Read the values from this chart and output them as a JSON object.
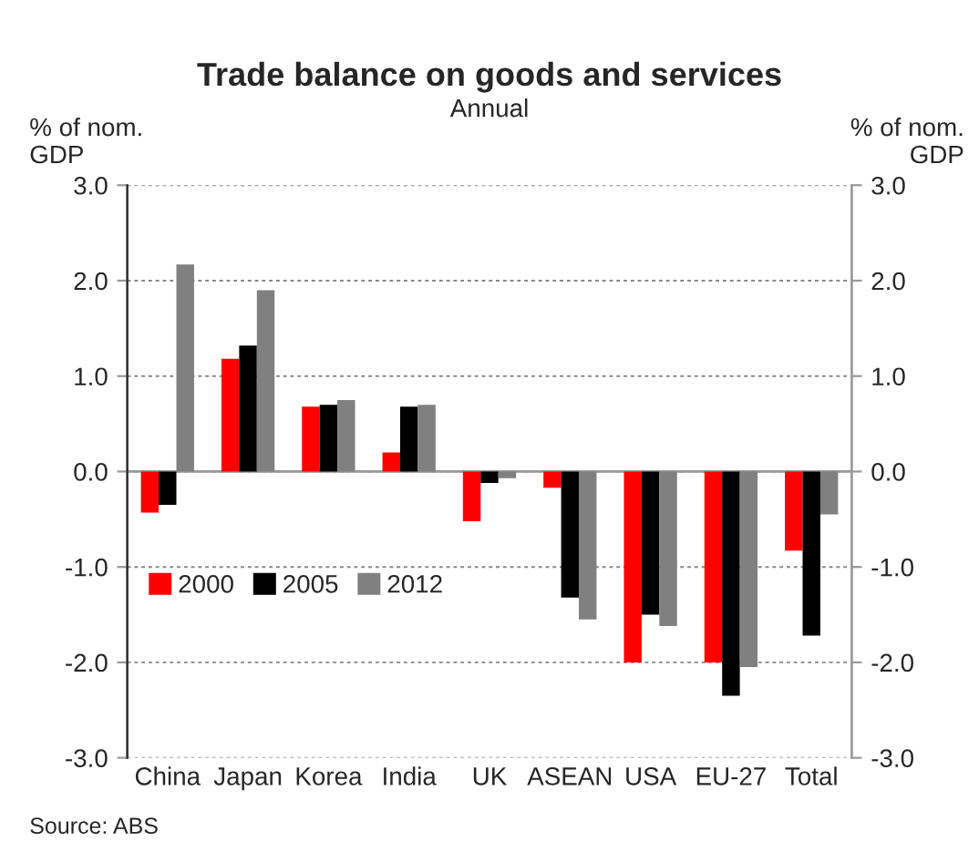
{
  "chart_data": {
    "type": "bar",
    "title": "Trade balance on goods and services",
    "subtitle": "Annual",
    "ylabel": "% of nom.\nGDP",
    "y2label": "% of nom.\nGDP",
    "categories": [
      "China",
      "Japan",
      "Korea",
      "India",
      "UK",
      "ASEAN",
      "USA",
      "EU-27",
      "Total"
    ],
    "series": [
      {
        "name": "2000",
        "color": "#ff0000",
        "values": [
          -0.43,
          1.18,
          0.68,
          0.2,
          -0.52,
          -0.17,
          -2.0,
          -2.0,
          -0.83
        ]
      },
      {
        "name": "2005",
        "color": "#000000",
        "values": [
          -0.35,
          1.32,
          0.7,
          0.68,
          -0.12,
          -1.32,
          -1.5,
          -2.35,
          -1.72
        ]
      },
      {
        "name": "2012",
        "color": "#808080",
        "values": [
          2.17,
          1.9,
          0.75,
          0.7,
          -0.07,
          -1.55,
          -1.62,
          -2.05,
          -0.45
        ]
      }
    ],
    "ylim": [
      -3,
      3
    ],
    "yticks": [
      {
        "value": -3,
        "label": "-3.0"
      },
      {
        "value": -2,
        "label": "-2.0"
      },
      {
        "value": -1,
        "label": "-1.0"
      },
      {
        "value": 0,
        "label": "0.0"
      },
      {
        "value": 1,
        "label": "1.0"
      },
      {
        "value": 2,
        "label": "2.0"
      },
      {
        "value": 3,
        "label": "3.0"
      }
    ],
    "y2lim": [
      -3,
      3
    ],
    "y2ticks": [
      {
        "value": -3,
        "label": "-3.0"
      },
      {
        "value": -2,
        "label": "-2.0"
      },
      {
        "value": -1,
        "label": "-1.0"
      },
      {
        "value": 0,
        "label": "0.0"
      },
      {
        "value": 1,
        "label": "1.0"
      },
      {
        "value": 2,
        "label": "2.0"
      },
      {
        "value": 3,
        "label": "3.0"
      }
    ],
    "grid": "y",
    "legend": "left",
    "annotations": [
      "Source: ABS"
    ]
  }
}
